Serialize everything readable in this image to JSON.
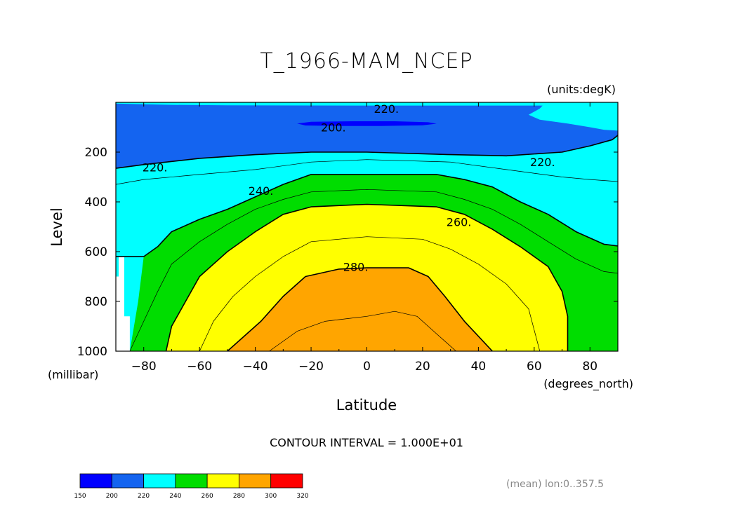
{
  "chart_data": {
    "type": "filled-contour",
    "title": "T_1966-MAM_NCEP",
    "units_label": "(units:degK)",
    "xlabel": "Latitude",
    "ylabel": "Level",
    "x_units": "(degrees_north)",
    "y_units": "(millibar)",
    "xlim": [
      -90,
      90
    ],
    "ylim": [
      1000,
      0
    ],
    "x_ticks": [
      -80,
      -60,
      -40,
      -20,
      0,
      20,
      40,
      60,
      80
    ],
    "x_tick_labels": [
      "−80",
      "−60",
      "−40",
      "−20",
      "0",
      "20",
      "40",
      "60",
      "80"
    ],
    "y_ticks": [
      200,
      400,
      600,
      800,
      1000
    ],
    "y_tick_labels": [
      "200",
      "400",
      "600",
      "800",
      "1000"
    ],
    "contour_interval_text": "CONTOUR INTERVAL = 1.000E+01",
    "footnote": "(mean) lon:0..357.5",
    "colorbar": {
      "levels": [
        150,
        200,
        220,
        240,
        260,
        280,
        300,
        320
      ],
      "labels": [
        "150",
        "200",
        "220",
        "240",
        "260",
        "280",
        "300",
        "320"
      ],
      "colors": [
        "#0000ff",
        "#1464f0",
        "#00ffff",
        "#00dd00",
        "#ffff00",
        "#ffa500",
        "#ff0000"
      ]
    },
    "background_color": "#00ffff",
    "filled_regions": [
      {
        "min_value": 200,
        "max_value": 220,
        "color": "#1464f0",
        "boundary": [
          [
            -90,
            5
          ],
          [
            -80,
            8
          ],
          [
            -70,
            10
          ],
          [
            -50,
            12
          ],
          [
            0,
            13
          ],
          [
            40,
            13
          ],
          [
            63,
            13
          ],
          [
            62,
            25
          ],
          [
            58,
            50
          ],
          [
            62,
            70
          ],
          [
            72,
            85
          ],
          [
            80,
            100
          ],
          [
            85,
            110
          ],
          [
            92,
            115
          ],
          [
            88,
            150
          ],
          [
            80,
            175
          ],
          [
            70,
            200
          ],
          [
            50,
            215
          ],
          [
            30,
            210
          ],
          [
            0,
            200
          ],
          [
            -20,
            200
          ],
          [
            -40,
            210
          ],
          [
            -60,
            225
          ],
          [
            -80,
            250
          ],
          [
            -90,
            265
          ]
        ]
      },
      {
        "min_value": 150,
        "max_value": 200,
        "color": "#0000ff",
        "boundary": [
          [
            -25,
            85
          ],
          [
            -20,
            78
          ],
          [
            -5,
            76
          ],
          [
            10,
            76
          ],
          [
            22,
            80
          ],
          [
            25,
            86
          ],
          [
            20,
            92
          ],
          [
            5,
            95
          ],
          [
            -10,
            95
          ],
          [
            -22,
            93
          ]
        ]
      },
      {
        "min_value": 240,
        "max_value": 260,
        "color": "#00dd00",
        "boundary": [
          [
            -90,
            1000
          ],
          [
            -85,
            1000
          ],
          [
            -82,
            800
          ],
          [
            -80,
            620
          ],
          [
            -75,
            580
          ],
          [
            -70,
            520
          ],
          [
            -60,
            470
          ],
          [
            -50,
            430
          ],
          [
            -40,
            380
          ],
          [
            -30,
            330
          ],
          [
            -20,
            290
          ],
          [
            0,
            290
          ],
          [
            25,
            290
          ],
          [
            35,
            310
          ],
          [
            45,
            340
          ],
          [
            55,
            400
          ],
          [
            65,
            450
          ],
          [
            75,
            520
          ],
          [
            85,
            570
          ],
          [
            92,
            580
          ],
          [
            92,
            1000
          ]
        ]
      },
      {
        "min_value": 260,
        "max_value": 280,
        "color": "#ffff00",
        "boundary": [
          [
            -72,
            1000
          ],
          [
            -70,
            900
          ],
          [
            -65,
            800
          ],
          [
            -60,
            700
          ],
          [
            -50,
            600
          ],
          [
            -40,
            520
          ],
          [
            -30,
            450
          ],
          [
            -20,
            420
          ],
          [
            0,
            410
          ],
          [
            25,
            420
          ],
          [
            35,
            450
          ],
          [
            45,
            510
          ],
          [
            55,
            580
          ],
          [
            65,
            660
          ],
          [
            70,
            760
          ],
          [
            72,
            860
          ],
          [
            72,
            1000
          ]
        ]
      },
      {
        "min_value": 280,
        "max_value": 300,
        "color": "#ffa500",
        "boundary": [
          [
            -50,
            1000
          ],
          [
            -38,
            880
          ],
          [
            -30,
            780
          ],
          [
            -22,
            700
          ],
          [
            -10,
            670
          ],
          [
            0,
            665
          ],
          [
            15,
            665
          ],
          [
            22,
            700
          ],
          [
            28,
            780
          ],
          [
            35,
            880
          ],
          [
            45,
            1000
          ]
        ]
      },
      {
        "min_value": null,
        "max_value": null,
        "color": "#ffffff",
        "note": "missing data",
        "boundary": [
          [
            -92,
            1000
          ],
          [
            -92,
            700
          ],
          [
            -89,
            700
          ],
          [
            -89,
            620
          ],
          [
            -87,
            620
          ],
          [
            -87,
            860
          ],
          [
            -85,
            860
          ],
          [
            -85,
            1000
          ]
        ]
      }
    ],
    "contour_lines": [
      {
        "value": 220,
        "width": 1.6,
        "points": [
          [
            -90,
            265
          ],
          [
            -80,
            250
          ],
          [
            -60,
            225
          ],
          [
            -40,
            210
          ],
          [
            -20,
            200
          ],
          [
            0,
            200
          ],
          [
            30,
            210
          ],
          [
            50,
            215
          ],
          [
            70,
            200
          ],
          [
            80,
            175
          ],
          [
            88,
            150
          ],
          [
            92,
            115
          ]
        ]
      },
      {
        "value": 230,
        "width": 0.7,
        "points": [
          [
            -90,
            330
          ],
          [
            -80,
            310
          ],
          [
            -60,
            290
          ],
          [
            -40,
            270
          ],
          [
            -20,
            240
          ],
          [
            0,
            230
          ],
          [
            30,
            240
          ],
          [
            50,
            270
          ],
          [
            70,
            300
          ],
          [
            80,
            310
          ],
          [
            92,
            320
          ]
        ]
      },
      {
        "value": 240,
        "width": 1.6,
        "points": [
          [
            -90,
            620
          ],
          [
            -80,
            620
          ],
          [
            -75,
            580
          ],
          [
            -70,
            520
          ],
          [
            -60,
            470
          ],
          [
            -50,
            430
          ],
          [
            -40,
            380
          ],
          [
            -30,
            330
          ],
          [
            -20,
            290
          ],
          [
            0,
            290
          ],
          [
            25,
            290
          ],
          [
            35,
            310
          ],
          [
            45,
            340
          ],
          [
            55,
            400
          ],
          [
            65,
            450
          ],
          [
            75,
            520
          ],
          [
            85,
            570
          ],
          [
            92,
            580
          ]
        ]
      },
      {
        "value": 250,
        "width": 0.7,
        "points": [
          [
            -85,
            1000
          ],
          [
            -80,
            880
          ],
          [
            -75,
            760
          ],
          [
            -70,
            650
          ],
          [
            -60,
            560
          ],
          [
            -50,
            490
          ],
          [
            -40,
            430
          ],
          [
            -30,
            390
          ],
          [
            -20,
            360
          ],
          [
            0,
            350
          ],
          [
            25,
            360
          ],
          [
            35,
            390
          ],
          [
            45,
            430
          ],
          [
            55,
            490
          ],
          [
            65,
            560
          ],
          [
            75,
            630
          ],
          [
            85,
            680
          ],
          [
            92,
            690
          ]
        ]
      },
      {
        "value": 260,
        "width": 1.6,
        "points": [
          [
            -72,
            1000
          ],
          [
            -70,
            900
          ],
          [
            -65,
            800
          ],
          [
            -60,
            700
          ],
          [
            -50,
            600
          ],
          [
            -40,
            520
          ],
          [
            -30,
            450
          ],
          [
            -20,
            420
          ],
          [
            0,
            410
          ],
          [
            25,
            420
          ],
          [
            35,
            450
          ],
          [
            45,
            510
          ],
          [
            55,
            580
          ],
          [
            65,
            660
          ],
          [
            70,
            760
          ],
          [
            72,
            860
          ],
          [
            72,
            1000
          ]
        ]
      },
      {
        "value": 270,
        "width": 0.7,
        "points": [
          [
            -60,
            1000
          ],
          [
            -55,
            880
          ],
          [
            -48,
            780
          ],
          [
            -40,
            700
          ],
          [
            -30,
            620
          ],
          [
            -20,
            560
          ],
          [
            0,
            540
          ],
          [
            20,
            550
          ],
          [
            30,
            590
          ],
          [
            40,
            650
          ],
          [
            50,
            730
          ],
          [
            58,
            830
          ],
          [
            62,
            1000
          ]
        ]
      },
      {
        "value": 280,
        "width": 1.6,
        "points": [
          [
            -50,
            1000
          ],
          [
            -38,
            880
          ],
          [
            -30,
            780
          ],
          [
            -22,
            700
          ],
          [
            -10,
            670
          ],
          [
            0,
            665
          ],
          [
            15,
            665
          ],
          [
            22,
            700
          ],
          [
            28,
            780
          ],
          [
            35,
            880
          ],
          [
            45,
            1000
          ]
        ]
      },
      {
        "value": 290,
        "width": 0.7,
        "points": [
          [
            -35,
            1000
          ],
          [
            -25,
            920
          ],
          [
            -15,
            880
          ],
          [
            0,
            860
          ],
          [
            10,
            840
          ],
          [
            18,
            860
          ],
          [
            25,
            930
          ],
          [
            32,
            1000
          ]
        ]
      }
    ],
    "contour_labels": [
      {
        "text": "220.",
        "x": 7,
        "y": 25
      },
      {
        "text": "200.",
        "x": -12,
        "y": 100
      },
      {
        "text": "220.",
        "x": -76,
        "y": 260
      },
      {
        "text": "220.",
        "x": 63,
        "y": 240
      },
      {
        "text": "240.",
        "x": -38,
        "y": 355
      },
      {
        "text": "260.",
        "x": 33,
        "y": 480
      },
      {
        "text": "280.",
        "x": -4,
        "y": 660
      }
    ]
  }
}
